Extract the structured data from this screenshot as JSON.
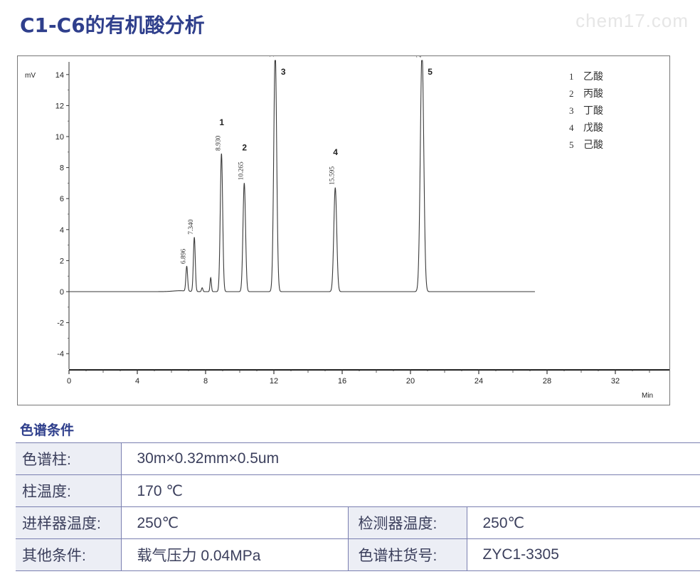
{
  "header": {
    "title": "C1-C6的有机酸分析",
    "watermark": "chem17.com"
  },
  "chart": {
    "y_unit": "mV",
    "x_unit": "Min",
    "y_ticks": [
      "14",
      "12",
      "10",
      "8",
      "6",
      "4",
      "2",
      "0",
      "-2",
      "-4"
    ],
    "x_ticks": [
      "0",
      "4",
      "8",
      "12",
      "16",
      "20",
      "24",
      "28",
      "32"
    ],
    "legend": [
      {
        "num": "1",
        "name": "乙酸"
      },
      {
        "num": "2",
        "name": "丙酸"
      },
      {
        "num": "3",
        "name": "丁酸"
      },
      {
        "num": "4",
        "name": "戊酸"
      },
      {
        "num": "5",
        "name": "己酸"
      }
    ],
    "peak_labels": [
      {
        "num": "",
        "rt": "6.896"
      },
      {
        "num": "",
        "rt": "7.340"
      },
      {
        "num": "1",
        "rt": "8.930"
      },
      {
        "num": "2",
        "rt": "10.265"
      },
      {
        "num": "3",
        "rt": "12.078"
      },
      {
        "num": "4",
        "rt": "15.595"
      },
      {
        "num": "5",
        "rt": "20.678"
      }
    ]
  },
  "chart_data": {
    "type": "line",
    "xlabel": "Min",
    "ylabel": "mV",
    "xlim": [
      0,
      35
    ],
    "ylim": [
      -5,
      14.5
    ],
    "x_ticks": [
      0,
      4,
      8,
      12,
      16,
      20,
      24,
      28,
      32
    ],
    "y_ticks": [
      -4,
      -2,
      0,
      2,
      4,
      6,
      8,
      10,
      12,
      14
    ],
    "trace_end": 27.3,
    "baseline": 0,
    "peaks": [
      {
        "rt": 6.896,
        "height": 1.6,
        "width": 0.05,
        "label": "6.896"
      },
      {
        "rt": 7.34,
        "height": 3.5,
        "width": 0.055,
        "label": "7.340"
      },
      {
        "rt": 7.8,
        "height": 0.25,
        "width": 0.04
      },
      {
        "rt": 8.3,
        "height": 0.9,
        "width": 0.04
      },
      {
        "rt": 8.93,
        "height": 8.9,
        "width": 0.07,
        "label": "8.930",
        "peak_no": "1"
      },
      {
        "rt": 10.265,
        "height": 7.0,
        "width": 0.075,
        "label": "10.265",
        "peak_no": "2"
      },
      {
        "rt": 12.078,
        "height": 15.5,
        "width": 0.085,
        "label": "12.078",
        "peak_no": "3"
      },
      {
        "rt": 15.595,
        "height": 6.7,
        "width": 0.085,
        "label": "15.595",
        "peak_no": "4"
      },
      {
        "rt": 20.678,
        "height": 15.5,
        "width": 0.1,
        "label": "20.678",
        "peak_no": "5"
      }
    ],
    "legend_placement": "top-right",
    "grid": false
  },
  "conditions": {
    "section_title": "色谱条件",
    "rows": [
      {
        "label": "色谱柱:",
        "value": "30m×0.32mm×0.5um"
      },
      {
        "label": "柱温度:",
        "value": "170 ℃"
      },
      {
        "label": "进样器温度:",
        "value": "250℃",
        "label2": "检测器温度:",
        "value2": "250℃"
      },
      {
        "label": "其他条件:",
        "value": " 载气压力  0.04MPa",
        "label2": "色谱柱货号:",
        "value2": "ZYC1-3305"
      }
    ]
  },
  "colors": {
    "title": "#2f3f8c",
    "trace": "#3a3a3a",
    "table_label_bg": "#eceef5",
    "table_border": "#7a7fb0"
  }
}
